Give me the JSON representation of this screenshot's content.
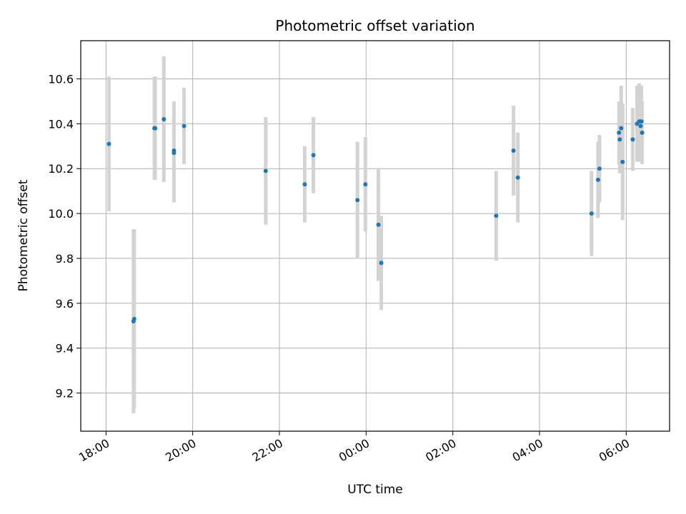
{
  "chart_data": {
    "type": "scatter",
    "title": "Photometric offset variation",
    "xlabel": "UTC time",
    "ylabel": "Photometric offset",
    "x_ticks": [
      "18:00",
      "20:00",
      "22:00",
      "00:00",
      "02:00",
      "04:00",
      "06:00"
    ],
    "y_ticks": [
      "9.2",
      "9.4",
      "9.6",
      "9.8",
      "10.0",
      "10.2",
      "10.4",
      "10.6"
    ],
    "xlim": [
      "17:25",
      "07:00"
    ],
    "ylim": [
      9.03,
      10.77
    ],
    "grid": true,
    "colors": {
      "point": "#1f77b4",
      "errorbar": "#d3d3d3",
      "grid": "#b0b0b0"
    },
    "series": [
      {
        "points": [
          {
            "x": "18:04",
            "y": 10.31,
            "yerr": 0.3
          },
          {
            "x": "18:38",
            "y": 9.52,
            "yerr": 0.41
          },
          {
            "x": "18:39",
            "y": 9.53,
            "yerr": 0.4
          },
          {
            "x": "19:07",
            "y": 10.38,
            "yerr": 0.23
          },
          {
            "x": "19:08",
            "y": 10.38,
            "yerr": 0.23
          },
          {
            "x": "19:20",
            "y": 10.42,
            "yerr": 0.28
          },
          {
            "x": "19:34",
            "y": 10.27,
            "yerr": 0.22
          },
          {
            "x": "19:34",
            "y": 10.28,
            "yerr": 0.22
          },
          {
            "x": "19:48",
            "y": 10.39,
            "yerr": 0.17
          },
          {
            "x": "21:41",
            "y": 10.19,
            "yerr": 0.24
          },
          {
            "x": "22:35",
            "y": 10.13,
            "yerr": 0.17
          },
          {
            "x": "22:47",
            "y": 10.26,
            "yerr": 0.17
          },
          {
            "x": "23:48",
            "y": 10.06,
            "yerr": 0.26
          },
          {
            "x": "23:59",
            "y": 10.13,
            "yerr": 0.21
          },
          {
            "x": "00:17",
            "y": 9.95,
            "yerr": 0.25
          },
          {
            "x": "00:21",
            "y": 9.78,
            "yerr": 0.21
          },
          {
            "x": "03:00",
            "y": 9.99,
            "yerr": 0.2
          },
          {
            "x": "03:24",
            "y": 10.28,
            "yerr": 0.2
          },
          {
            "x": "03:30",
            "y": 10.16,
            "yerr": 0.2
          },
          {
            "x": "05:12",
            "y": 10.0,
            "yerr": 0.19
          },
          {
            "x": "05:21",
            "y": 10.15,
            "yerr": 0.17
          },
          {
            "x": "05:23",
            "y": 10.2,
            "yerr": 0.15
          },
          {
            "x": "05:50",
            "y": 10.36,
            "yerr": 0.14
          },
          {
            "x": "05:51",
            "y": 10.33,
            "yerr": 0.15
          },
          {
            "x": "05:53",
            "y": 10.38,
            "yerr": 0.19
          },
          {
            "x": "05:55",
            "y": 10.23,
            "yerr": 0.26
          },
          {
            "x": "06:09",
            "y": 10.33,
            "yerr": 0.14
          },
          {
            "x": "06:15",
            "y": 10.4,
            "yerr": 0.17
          },
          {
            "x": "06:18",
            "y": 10.41,
            "yerr": 0.17
          },
          {
            "x": "06:20",
            "y": 10.39,
            "yerr": 0.16
          },
          {
            "x": "06:21",
            "y": 10.41,
            "yerr": 0.16
          },
          {
            "x": "06:22",
            "y": 10.36,
            "yerr": 0.14
          }
        ]
      }
    ]
  }
}
